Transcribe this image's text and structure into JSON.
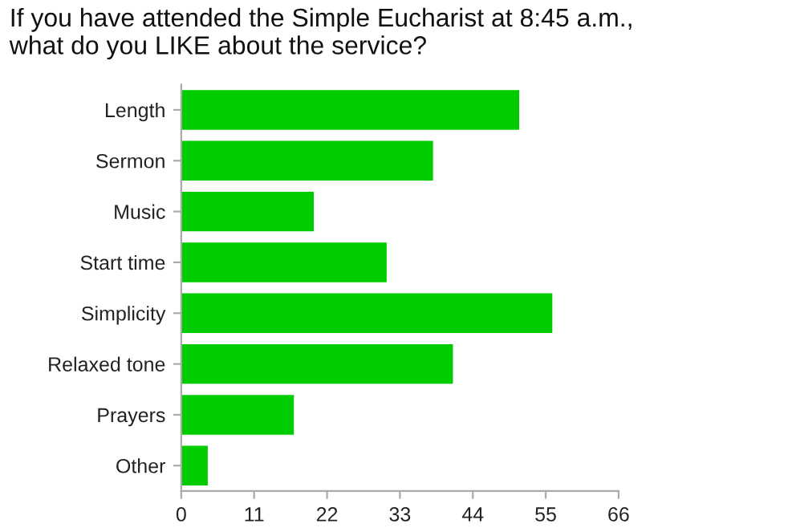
{
  "chart_data": {
    "type": "bar",
    "orientation": "horizontal",
    "title": "If you have attended the Simple Eucharist at 8:45 a.m.,\nwhat do you LIKE about the service?",
    "categories": [
      "Length",
      "Sermon",
      "Music",
      "Start time",
      "Simplicity",
      "Relaxed tone",
      "Prayers",
      "Other"
    ],
    "values": [
      51,
      38,
      20,
      31,
      56,
      41,
      17,
      4
    ],
    "color": "#00cc00",
    "xlim": [
      0,
      66
    ],
    "xticks": [
      0,
      11,
      22,
      33,
      44,
      55,
      66
    ],
    "grid": false
  }
}
